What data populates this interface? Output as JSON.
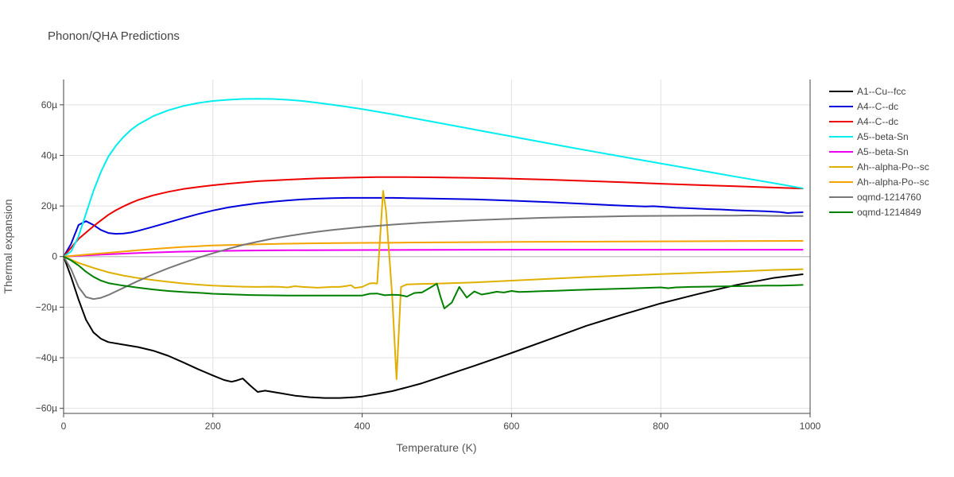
{
  "chart_data": {
    "type": "line",
    "title": "Phonon/QHA Predictions",
    "xlabel": "Temperature (K)",
    "ylabel": "Thermal expansion",
    "xlim": [
      0,
      1000
    ],
    "ylim": [
      -62,
      70
    ],
    "x_ticks": [
      0,
      200,
      400,
      600,
      800,
      1000
    ],
    "x_tick_labels": [
      "0",
      "200",
      "400",
      "600",
      "800",
      "1000"
    ],
    "y_ticks": [
      -60,
      -40,
      -20,
      0,
      20,
      40,
      60
    ],
    "y_tick_labels": [
      "−60µ",
      "−40µ",
      "−20µ",
      "0",
      "20µ",
      "40µ",
      "60µ"
    ],
    "grid": true,
    "legend_position": "right",
    "series": [
      {
        "name": "A1--Cu--fcc",
        "color": "#000000",
        "x": [
          0,
          10,
          20,
          30,
          40,
          50,
          60,
          80,
          100,
          120,
          140,
          160,
          180,
          200,
          215,
          225,
          232,
          240,
          250,
          260,
          270,
          290,
          310,
          330,
          350,
          370,
          390,
          400,
          420,
          440,
          460,
          480,
          500,
          550,
          600,
          650,
          700,
          750,
          800,
          850,
          900,
          950,
          990
        ],
        "y": [
          0,
          -8,
          -17,
          -25,
          -30,
          -32.5,
          -33.8,
          -34.8,
          -35.8,
          -37.2,
          -39.2,
          -41.8,
          -44.5,
          -47,
          -48.8,
          -49.5,
          -49,
          -48.2,
          -51,
          -53.5,
          -53,
          -54,
          -55,
          -55.6,
          -55.9,
          -55.9,
          -55.6,
          -55.3,
          -54.3,
          -53.2,
          -51.7,
          -50.1,
          -48.1,
          -43.2,
          -38.1,
          -32.8,
          -27.4,
          -22.8,
          -18.5,
          -14.8,
          -11.3,
          -8.5,
          -7
        ]
      },
      {
        "name": "A4--C--dc",
        "color": "#0000dd",
        "x": [
          0,
          10,
          20,
          30,
          40,
          50,
          60,
          70,
          80,
          90,
          100,
          120,
          140,
          160,
          180,
          200,
          220,
          240,
          260,
          280,
          300,
          320,
          340,
          360,
          380,
          400,
          420,
          440,
          460,
          480,
          500,
          550,
          600,
          650,
          700,
          750,
          780,
          790,
          800,
          820,
          840,
          860,
          880,
          900,
          940,
          960,
          970,
          980,
          990
        ],
        "y": [
          0,
          5,
          12.5,
          14,
          12.5,
          10.5,
          9.3,
          9,
          9.1,
          9.5,
          10.2,
          11.8,
          13.5,
          15.2,
          16.8,
          18.2,
          19.4,
          20.3,
          21.1,
          21.7,
          22.2,
          22.6,
          22.9,
          23.1,
          23.2,
          23.2,
          23.2,
          23.2,
          23.1,
          23,
          22.9,
          22.6,
          22.1,
          21.5,
          20.8,
          20.1,
          19.8,
          19.9,
          19.7,
          19.3,
          19.1,
          18.8,
          18.6,
          18.3,
          17.9,
          17.6,
          17.2,
          17.4,
          17.5
        ]
      },
      {
        "name": "A4--C--dc",
        "color": "#ee0000",
        "x": [
          0,
          10,
          20,
          30,
          40,
          50,
          60,
          70,
          80,
          90,
          100,
          120,
          140,
          160,
          180,
          200,
          220,
          240,
          260,
          280,
          300,
          340,
          380,
          420,
          440,
          460,
          500,
          550,
          600,
          650,
          700,
          750,
          800,
          850,
          900,
          950,
          990
        ],
        "y": [
          0,
          3.5,
          7,
          9.5,
          12,
          14.3,
          16.5,
          18.3,
          19.8,
          21.2,
          22.4,
          24.2,
          25.6,
          26.7,
          27.5,
          28.2,
          28.8,
          29.3,
          29.8,
          30.1,
          30.4,
          30.9,
          31.2,
          31.4,
          31.4,
          31.4,
          31.3,
          31.1,
          30.8,
          30.4,
          29.9,
          29.4,
          28.8,
          28.3,
          27.8,
          27.3,
          26.9
        ]
      },
      {
        "name": "A5--beta-Sn",
        "color": "#00eeee",
        "x": [
          0,
          10,
          20,
          30,
          40,
          50,
          60,
          70,
          80,
          90,
          100,
          120,
          140,
          160,
          180,
          200,
          220,
          240,
          260,
          280,
          300,
          320,
          340,
          360,
          380,
          400,
          440,
          480,
          520,
          560,
          600,
          640,
          680,
          720,
          760,
          800,
          850,
          900,
          950,
          990
        ],
        "y": [
          0,
          2,
          8,
          17,
          26,
          33.5,
          39.5,
          43.8,
          47.2,
          50,
          52.2,
          55.5,
          57.8,
          59.5,
          60.7,
          61.5,
          62,
          62.3,
          62.4,
          62.3,
          62,
          61.5,
          60.8,
          60,
          59.2,
          58.3,
          56.3,
          54.1,
          51.9,
          49.7,
          47.5,
          45.3,
          43.1,
          41,
          38.9,
          36.8,
          34.2,
          31.6,
          29.1,
          27
        ]
      },
      {
        "name": "A5--beta-Sn",
        "color": "#ee00ee",
        "x": [
          0,
          50,
          100,
          150,
          200,
          250,
          300,
          400,
          500,
          600,
          700,
          800,
          900,
          990
        ],
        "y": [
          0,
          0.8,
          1.4,
          1.9,
          2.2,
          2.4,
          2.5,
          2.6,
          2.65,
          2.7,
          2.7,
          2.7,
          2.7,
          2.7
        ]
      },
      {
        "name": "Ah--alpha-Po--sc",
        "color": "#e0b000",
        "x": [
          0,
          20,
          40,
          60,
          80,
          100,
          120,
          140,
          160,
          180,
          200,
          220,
          240,
          260,
          280,
          290,
          300,
          310,
          320,
          340,
          360,
          370,
          380,
          385,
          390,
          400,
          410,
          415,
          420,
          428,
          432,
          440,
          446,
          452,
          460,
          480,
          500,
          550,
          600,
          650,
          700,
          750,
          800,
          850,
          900,
          950,
          990
        ],
        "y": [
          0,
          -2.5,
          -4.5,
          -6.2,
          -7.5,
          -8.5,
          -9.3,
          -10,
          -10.6,
          -11.1,
          -11.5,
          -11.7,
          -11.9,
          -12,
          -11.9,
          -12,
          -12.2,
          -11.7,
          -12,
          -12.3,
          -12,
          -12,
          -11.6,
          -11.3,
          -12.4,
          -12,
          -10.6,
          -10.5,
          -10.7,
          26,
          18,
          -15,
          -48.5,
          -12,
          -11,
          -10.8,
          -10.7,
          -10.2,
          -9.5,
          -8.8,
          -8.1,
          -7.5,
          -6.9,
          -6.4,
          -5.9,
          -5.3,
          -5
        ]
      },
      {
        "name": "Ah--alpha-Po--sc",
        "color": "#f5a300",
        "x": [
          0,
          20,
          40,
          60,
          80,
          100,
          120,
          140,
          160,
          180,
          200,
          250,
          300,
          350,
          400,
          450,
          500,
          600,
          700,
          800,
          900,
          990
        ],
        "y": [
          0,
          0.5,
          1,
          1.5,
          2,
          2.5,
          3,
          3.4,
          3.8,
          4.1,
          4.4,
          4.8,
          5.1,
          5.3,
          5.4,
          5.5,
          5.6,
          5.8,
          5.9,
          6,
          6.1,
          6.2
        ]
      },
      {
        "name": "oqmd-1214760",
        "color": "#777777",
        "x": [
          0,
          10,
          20,
          30,
          40,
          50,
          60,
          70,
          80,
          90,
          100,
          120,
          140,
          160,
          180,
          200,
          220,
          240,
          260,
          280,
          300,
          320,
          340,
          360,
          380,
          400,
          440,
          480,
          520,
          560,
          600,
          640,
          680,
          720,
          760,
          800,
          850,
          900,
          920,
          950,
          990
        ],
        "y": [
          0,
          -5,
          -12,
          -16,
          -16.8,
          -16.3,
          -15.2,
          -13.8,
          -12.4,
          -11,
          -9.6,
          -7,
          -4.6,
          -2.5,
          -0.5,
          1.3,
          3,
          4.6,
          5.9,
          7.1,
          8.1,
          9,
          9.8,
          10.5,
          11.1,
          11.7,
          12.6,
          13.4,
          14,
          14.5,
          14.9,
          15.3,
          15.6,
          15.8,
          16,
          16.1,
          16.2,
          16.2,
          16.3,
          16.1,
          16
        ]
      },
      {
        "name": "oqmd-1214849",
        "color": "#008000",
        "x": [
          0,
          10,
          20,
          30,
          40,
          50,
          60,
          80,
          100,
          120,
          140,
          160,
          180,
          200,
          250,
          300,
          350,
          400,
          410,
          420,
          430,
          440,
          450,
          460,
          470,
          480,
          490,
          500,
          505,
          510,
          520,
          530,
          540,
          550,
          560,
          570,
          580,
          590,
          600,
          610,
          620,
          640,
          660,
          680,
          700,
          720,
          760,
          800,
          810,
          820,
          840,
          860,
          880,
          900,
          920,
          940,
          960,
          980,
          990
        ],
        "y": [
          0,
          -1.5,
          -3.5,
          -6,
          -8,
          -9.5,
          -10.5,
          -11.5,
          -12.3,
          -13,
          -13.6,
          -14,
          -14.3,
          -14.7,
          -15.2,
          -15.4,
          -15.4,
          -15.4,
          -14.7,
          -14.6,
          -15.3,
          -15.1,
          -15.2,
          -15.8,
          -14.4,
          -14.2,
          -12.5,
          -10.7,
          -16,
          -20.5,
          -18.2,
          -12,
          -16.2,
          -13.8,
          -15,
          -14.5,
          -13.9,
          -14.2,
          -13.6,
          -14,
          -13.9,
          -13.7,
          -13.5,
          -13.3,
          -13.1,
          -12.9,
          -12.6,
          -12.2,
          -12.5,
          -12.2,
          -12,
          -11.9,
          -11.8,
          -11.7,
          -11.6,
          -11.5,
          -11.5,
          -11.3,
          -11.2
        ]
      }
    ]
  }
}
